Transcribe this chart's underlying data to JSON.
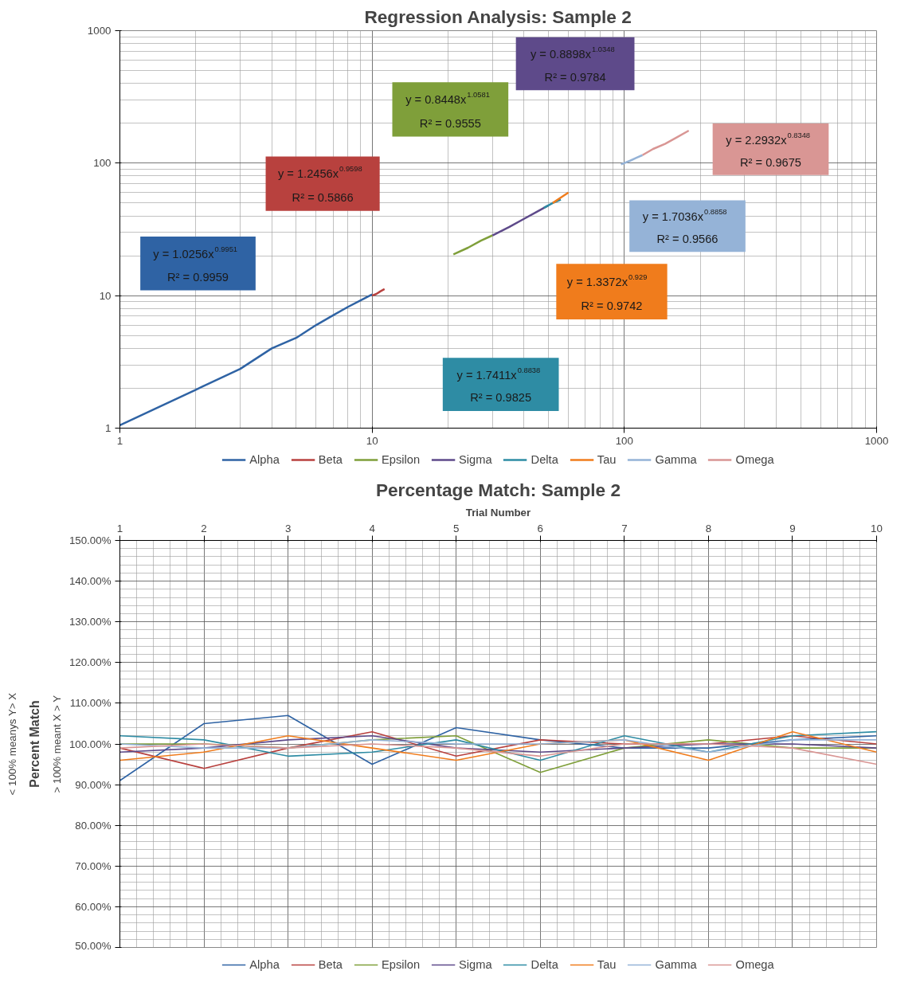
{
  "chart_data": [
    {
      "type": "line",
      "title": "Regression Analysis: Sample 2",
      "log": "xy",
      "grid": true,
      "legend": "bottom",
      "xlim": [
        1,
        1000
      ],
      "ylim": [
        1,
        1000
      ],
      "xticks": [
        1,
        10,
        100,
        1000
      ],
      "yticks": [
        1,
        10,
        100,
        1000
      ],
      "series": [
        {
          "name": "Alpha",
          "color": "#2f63a4",
          "x": [
            1,
            2,
            3,
            4,
            5,
            6,
            7,
            8,
            9,
            10
          ],
          "values": [
            1.05,
            1.95,
            2.8,
            4.0,
            4.8,
            6.0,
            7.1,
            8.2,
            9.2,
            10.2
          ]
        },
        {
          "name": "Beta",
          "color": "#b8413e",
          "x": [
            10,
            10.4,
            10.8,
            11.2
          ],
          "values": [
            10,
            10.3,
            10.8,
            11.2
          ]
        },
        {
          "name": "Epsilon",
          "color": "#7f9f3a",
          "x": [
            21,
            24,
            27,
            30
          ],
          "values": [
            20.5,
            23,
            26,
            28.5
          ]
        },
        {
          "name": "Sigma",
          "color": "#5e4a8a",
          "x": [
            30,
            35,
            40,
            45,
            50
          ],
          "values": [
            28.5,
            33,
            38,
            43,
            48
          ]
        },
        {
          "name": "Delta",
          "color": "#2e8ca4",
          "x": [
            48,
            52,
            56
          ],
          "values": [
            46,
            50,
            53
          ]
        },
        {
          "name": "Tau",
          "color": "#f07c1c",
          "x": [
            52,
            56,
            60
          ],
          "values": [
            50,
            55,
            60
          ]
        },
        {
          "name": "Gamma",
          "color": "#95b3d7",
          "x": [
            97,
            105,
            112,
            118
          ],
          "values": [
            98,
            104,
            110,
            115
          ]
        },
        {
          "name": "Omega",
          "color": "#d99694",
          "x": [
            118,
            130,
            145,
            160,
            180
          ],
          "values": [
            115,
            128,
            140,
            155,
            176
          ]
        }
      ],
      "annotations": [
        "y = 1.0256x$^{0.9951}$",
        "R² = 0.9959",
        "y = 1.2456x$^{0.9598}$",
        "R² = 0.5866",
        "y = 0.8448x$^{1.0581}$",
        "R² = 0.9555",
        "y = 0.8898x$^{1.0348}$",
        "R² = 0.9784",
        "y = 1.7411x$^{0.8838}$",
        "R² = 0.9825",
        "y = 1.3372x$^{0.929}$",
        "R² = 0.9742",
        "y = 1.7036x$^{0.8858}$",
        "R² = 0.9566",
        "y = 2.2932x$^{0.8348}$",
        "R² = 0.9675"
      ]
    },
    {
      "type": "line",
      "title": "Percentage Match: Sample 2",
      "xlabel": "Trial Number",
      "ylabel": "Percent Match",
      "grid": true,
      "legend": "bottom",
      "xlim": [
        1,
        10
      ],
      "xticks": [
        1,
        2,
        3,
        4,
        5,
        6,
        7,
        8,
        9,
        10
      ],
      "ylim": [
        50,
        150
      ],
      "yticks": [
        {
          "value": 50,
          "label": "50.00%"
        },
        {
          "value": 60,
          "label": "60.00%"
        },
        {
          "value": 70,
          "label": "70.00%"
        },
        {
          "value": 80,
          "label": "80.00%"
        },
        {
          "value": 90,
          "label": "90.00%"
        },
        {
          "value": 100,
          "label": "100.00%"
        },
        {
          "value": 110,
          "label": "110.00%"
        },
        {
          "value": 120,
          "label": "120.00%"
        },
        {
          "value": 130,
          "label": "130.00%"
        },
        {
          "value": 140,
          "label": "140.00%"
        },
        {
          "value": 150,
          "label": "150.00%"
        }
      ],
      "x": [
        1,
        2,
        3,
        4,
        5,
        6,
        7,
        8,
        9,
        10
      ],
      "series": [
        {
          "name": "Alpha",
          "color": "#2f63a4",
          "values": [
            91,
            105,
            107,
            95,
            104,
            101,
            99,
            99,
            101,
            102
          ]
        },
        {
          "name": "Beta",
          "color": "#b8413e",
          "values": [
            99,
            94,
            99,
            103,
            97,
            101,
            100,
            100,
            102,
            100
          ]
        },
        {
          "name": "Epsilon",
          "color": "#7f9f3a",
          "values": [
            100,
            100,
            99,
            101,
            102,
            93,
            99,
            101,
            99,
            99
          ]
        },
        {
          "name": "Sigma",
          "color": "#5e4a8a",
          "values": [
            98,
            99,
            101,
            102,
            99,
            98,
            99,
            100,
            100,
            99
          ]
        },
        {
          "name": "Delta",
          "color": "#2e8ca4",
          "values": [
            102,
            101,
            97,
            98,
            101,
            96,
            102,
            98,
            102,
            103
          ]
        },
        {
          "name": "Tau",
          "color": "#f07c1c",
          "values": [
            96,
            98,
            102,
            99,
            96,
            100,
            101,
            96,
            103,
            98
          ]
        },
        {
          "name": "Gamma",
          "color": "#95b3d7",
          "values": [
            100,
            99,
            99,
            101,
            100,
            100,
            101,
            98,
            101,
            101
          ]
        },
        {
          "name": "Omega",
          "color": "#d99694",
          "values": [
            99,
            100,
            99,
            100,
            99,
            97,
            100,
            100,
            99,
            95
          ]
        }
      ],
      "annotations": [
        "< 100% meanys Y> X",
        "> 100% meant X > Y"
      ]
    }
  ]
}
